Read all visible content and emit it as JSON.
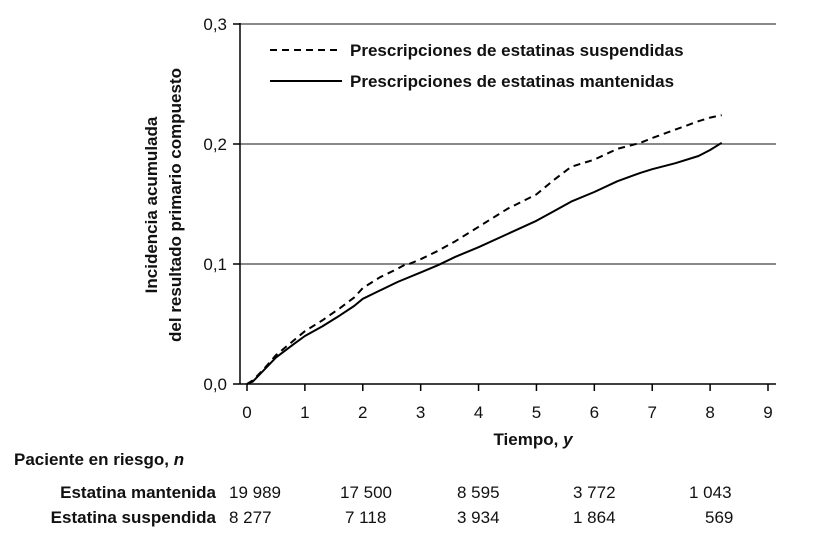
{
  "chart_data": {
    "type": "line",
    "ylabel_lines": [
      "Incidencia acumulada",
      "del resultado primario compuesto"
    ],
    "xlabel_main": "Tiempo, ",
    "xlabel_unit": "y",
    "xlim": [
      0,
      9
    ],
    "ylim": [
      0,
      0.3
    ],
    "x_ticks": [
      0,
      1,
      2,
      3,
      4,
      5,
      6,
      7,
      8,
      9
    ],
    "x_tick_labels": [
      "0",
      "1",
      "2",
      "3",
      "4",
      "5",
      "6",
      "7",
      "8",
      "9"
    ],
    "y_ticks": [
      0,
      0.1,
      0.2,
      0.3
    ],
    "y_tick_labels": [
      "0,0",
      "0,1",
      "0,2",
      "0,3"
    ],
    "gridlines": "horizontal",
    "legend_position": "top-right",
    "series": [
      {
        "name": "Prescripciones de estatinas suspendidas",
        "style": "dashed",
        "x": [
          0,
          0.1,
          0.3,
          0.5,
          0.8,
          1.0,
          1.3,
          1.6,
          1.85,
          2.0,
          2.3,
          2.6,
          2.75,
          2.8,
          3.0,
          3.3,
          3.6,
          4.0,
          4.5,
          5.0,
          5.3,
          5.6,
          6.0,
          6.4,
          6.8,
          7.0,
          7.4,
          7.8,
          8.0,
          8.2
        ],
        "values": [
          0,
          0.003,
          0.013,
          0.024,
          0.036,
          0.044,
          0.053,
          0.063,
          0.072,
          0.08,
          0.089,
          0.096,
          0.1,
          0.1,
          0.104,
          0.111,
          0.119,
          0.131,
          0.146,
          0.158,
          0.17,
          0.181,
          0.187,
          0.196,
          0.201,
          0.205,
          0.212,
          0.219,
          0.222,
          0.224
        ]
      },
      {
        "name": "Prescripciones de estatinas mantenidas",
        "style": "solid",
        "x": [
          0,
          0.1,
          0.3,
          0.5,
          0.8,
          1.0,
          1.3,
          1.6,
          1.85,
          2.0,
          2.3,
          2.6,
          3.0,
          3.3,
          3.6,
          4.0,
          4.5,
          5.0,
          5.3,
          5.6,
          6.0,
          6.4,
          6.8,
          7.0,
          7.4,
          7.8,
          8.0,
          8.2
        ],
        "values": [
          0,
          0.002,
          0.012,
          0.022,
          0.033,
          0.04,
          0.048,
          0.057,
          0.065,
          0.071,
          0.078,
          0.085,
          0.093,
          0.099,
          0.106,
          0.114,
          0.125,
          0.136,
          0.144,
          0.152,
          0.16,
          0.169,
          0.176,
          0.179,
          0.184,
          0.19,
          0.195,
          0.201
        ]
      }
    ]
  },
  "risk_table": {
    "header": "Paciente en riesgo, ",
    "header_unit": "n",
    "rows": [
      {
        "label": "Estatina mantenida",
        "values": [
          "19 989",
          "17 500",
          "8 595",
          "3 772",
          "1 043"
        ]
      },
      {
        "label": "Estatina suspendida",
        "values": [
          "8 277",
          "7 118",
          "3 934",
          "1 864",
          "569"
        ]
      }
    ]
  }
}
